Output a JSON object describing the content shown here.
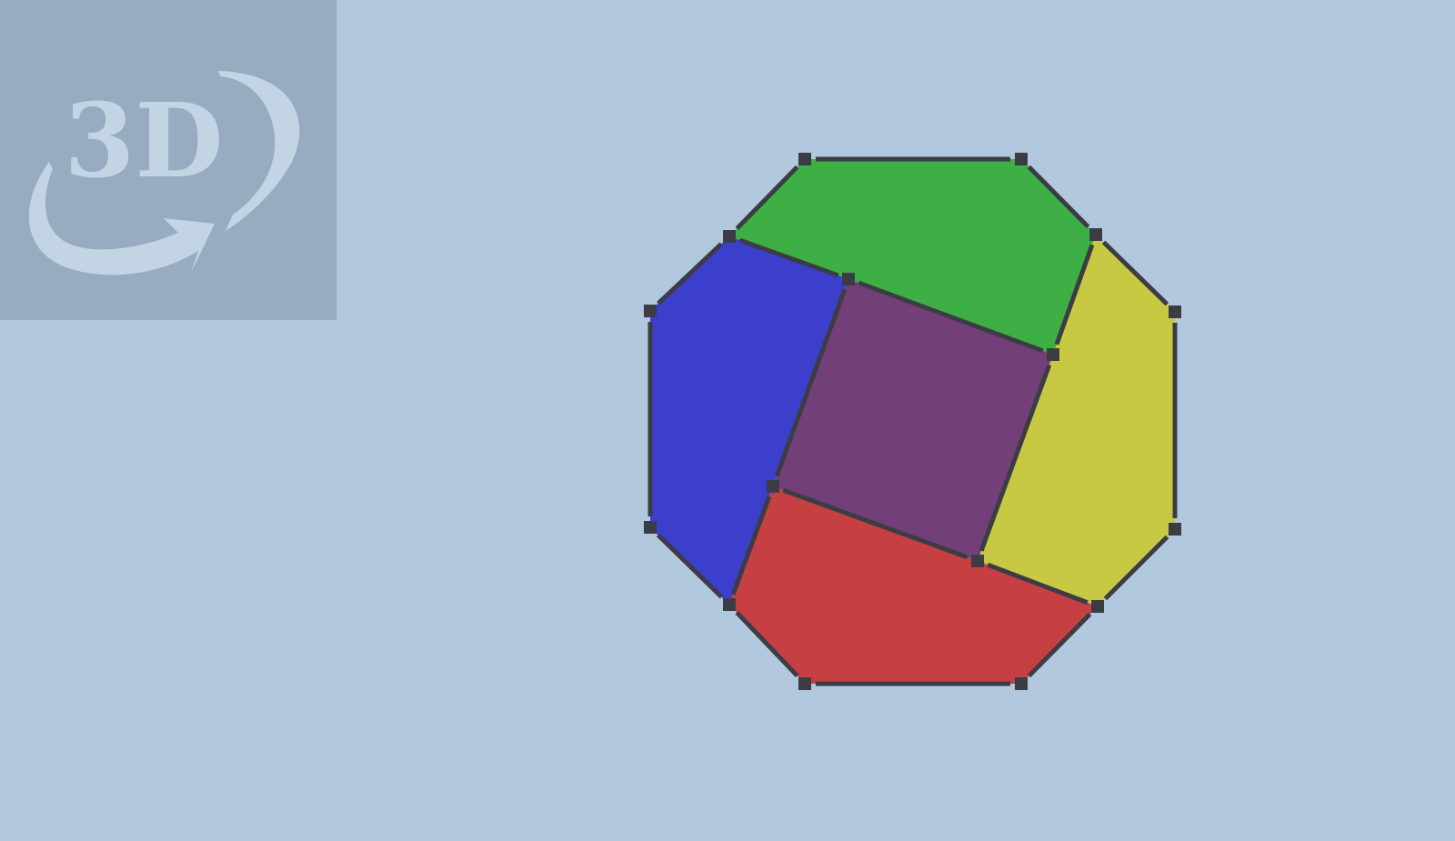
{
  "view_toggle": {
    "label": "3D",
    "icon": "rotate-3d-icon"
  },
  "model": {
    "type": "polyhedron-net",
    "faces": [
      {
        "name": "top",
        "color": "#3daf45"
      },
      {
        "name": "left",
        "color": "#3c3ecc"
      },
      {
        "name": "center",
        "color": "#733f79"
      },
      {
        "name": "right",
        "color": "#c7c943"
      },
      {
        "name": "bottom",
        "color": "#c63f42"
      }
    ],
    "edge_color": "#3c3d44",
    "vertex_color": "#3c3d44",
    "background": "#b1c8de"
  }
}
